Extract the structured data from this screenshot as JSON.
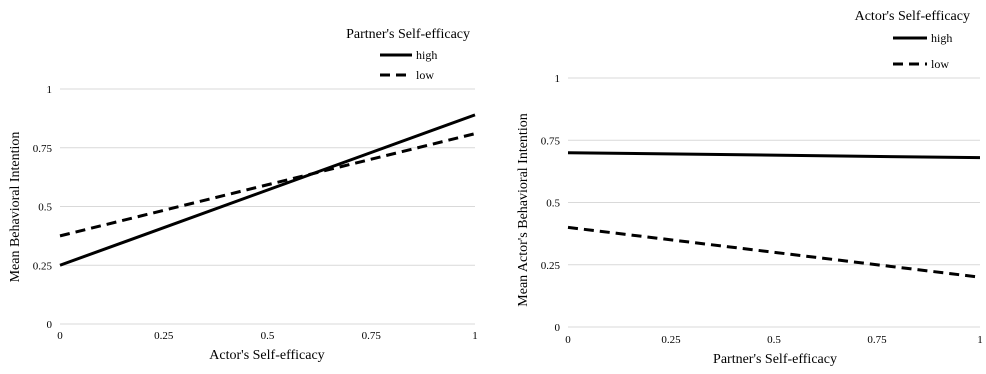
{
  "chart_data": [
    {
      "type": "line",
      "title": "",
      "xlabel": "Actor's Self-efficacy",
      "ylabel": "Mean Behavioral Intention",
      "xlim": [
        0,
        1
      ],
      "ylim": [
        0,
        1
      ],
      "x_ticks": [
        "0",
        "0.25",
        "0.5",
        "0.75",
        "1"
      ],
      "y_ticks": [
        "0",
        "0.25",
        "0.5",
        "0.75",
        "1"
      ],
      "grid": "horizontal",
      "legend_title": "Partner's Self-efficacy",
      "legend_position": "top-right",
      "series": [
        {
          "name": "high",
          "style": "solid",
          "x": [
            0,
            1
          ],
          "y": [
            0.25,
            0.89
          ]
        },
        {
          "name": "low",
          "style": "dashed",
          "x": [
            0,
            1
          ],
          "y": [
            0.375,
            0.81
          ]
        }
      ]
    },
    {
      "type": "line",
      "title": "",
      "xlabel": "Partner's Self-efficacy",
      "ylabel": "Mean Actor's Behavioral Intention",
      "xlim": [
        0,
        1
      ],
      "ylim": [
        0,
        1
      ],
      "x_ticks": [
        "0",
        "0.25",
        "0.5",
        "0.75",
        "1"
      ],
      "y_ticks": [
        "0",
        "0.25",
        "0.5",
        "0.75",
        "1"
      ],
      "grid": "horizontal",
      "legend_title": "Actor's Self-efficacy",
      "legend_position": "top-right",
      "series": [
        {
          "name": "high",
          "style": "solid",
          "x": [
            0,
            1
          ],
          "y": [
            0.7,
            0.68
          ]
        },
        {
          "name": "low",
          "style": "dashed",
          "x": [
            0,
            1
          ],
          "y": [
            0.4,
            0.2
          ]
        }
      ],
      "line_color": "#000000",
      "grid_color": "#d9d9d9"
    }
  ]
}
